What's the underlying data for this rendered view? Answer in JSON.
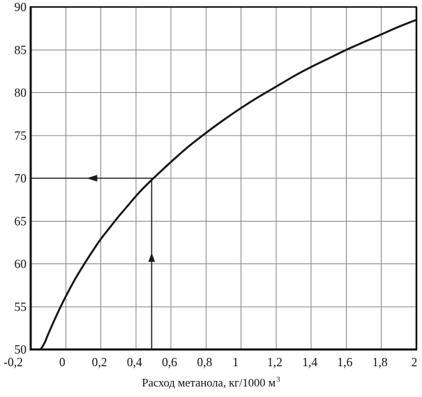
{
  "figure": {
    "background": "#ffffff",
    "curve_color": "#151515",
    "grid_color": "#7d7d7d",
    "axis_color": "#0d0d0d",
    "arrow_color": "#1a1a1a",
    "text_color": "#111111"
  },
  "chart_data": {
    "type": "line",
    "title": "",
    "xlabel": "Расход метанола, кг/1000 м",
    "xlabel_sup": "3",
    "ylabel": "",
    "xlim": [
      -0.2,
      2
    ],
    "ylim": [
      50,
      90
    ],
    "grid": true,
    "legend": "none",
    "x_ticks": [
      {
        "v": -0.2,
        "label": "-0,2",
        "dx": -25
      },
      {
        "v": 0,
        "label": "0",
        "dx": -5
      },
      {
        "v": 0.2,
        "label": "0,2",
        "dx": -2
      },
      {
        "v": 0.4,
        "label": "0,4",
        "dx": -2
      },
      {
        "v": 0.6,
        "label": "0,6",
        "dx": -2
      },
      {
        "v": 0.8,
        "label": "0,8",
        "dx": -2
      },
      {
        "v": 1,
        "label": "1",
        "dx": -8
      },
      {
        "v": 1.2,
        "label": "1,2",
        "dx": -2
      },
      {
        "v": 1.4,
        "label": "1,4",
        "dx": -2
      },
      {
        "v": 1.6,
        "label": "1,6",
        "dx": -2
      },
      {
        "v": 1.8,
        "label": "1,8",
        "dx": -2
      },
      {
        "v": 2,
        "label": "2",
        "dx": -3
      }
    ],
    "y_ticks": [
      {
        "v": 50,
        "label": "50"
      },
      {
        "v": 55,
        "label": "55"
      },
      {
        "v": 60,
        "label": "60"
      },
      {
        "v": 65,
        "label": "65"
      },
      {
        "v": 70,
        "label": "70"
      },
      {
        "v": 75,
        "label": "75"
      },
      {
        "v": 80,
        "label": "80"
      },
      {
        "v": 85,
        "label": "85"
      },
      {
        "v": 90,
        "label": "90"
      }
    ],
    "series": [
      {
        "name": "main-curve",
        "points": [
          [
            -0.144,
            50.0
          ],
          [
            -0.12,
            50.8
          ],
          [
            -0.1,
            51.8
          ],
          [
            -0.05,
            54.1
          ],
          [
            0,
            56.2
          ],
          [
            0.05,
            58.1
          ],
          [
            0.1,
            59.8
          ],
          [
            0.15,
            61.4
          ],
          [
            0.2,
            62.9
          ],
          [
            0.25,
            64.2
          ],
          [
            0.3,
            65.5
          ],
          [
            0.35,
            66.7
          ],
          [
            0.4,
            67.9
          ],
          [
            0.45,
            69.0
          ],
          [
            0.5,
            70.0
          ],
          [
            0.6,
            71.9
          ],
          [
            0.7,
            73.7
          ],
          [
            0.8,
            75.3
          ],
          [
            0.9,
            76.8
          ],
          [
            1.0,
            78.2
          ],
          [
            1.1,
            79.5
          ],
          [
            1.2,
            80.7
          ],
          [
            1.3,
            81.9
          ],
          [
            1.4,
            83.0
          ],
          [
            1.5,
            84.0
          ],
          [
            1.6,
            85.0
          ],
          [
            1.7,
            85.9
          ],
          [
            1.8,
            86.8
          ],
          [
            1.9,
            87.7
          ],
          [
            2.0,
            88.5
          ]
        ]
      }
    ],
    "annotations": [
      {
        "name": "readout-arrow-left",
        "type": "arrow",
        "line_from": [
          0.5,
          70
        ],
        "line_to": [
          -0.2,
          70
        ],
        "arrow_tip": [
          0.12,
          70
        ],
        "arrow_dir": "left"
      },
      {
        "name": "readout-arrow-up",
        "type": "arrow",
        "line_from": [
          0.49,
          50
        ],
        "line_to": [
          0.49,
          70
        ],
        "arrow_tip": [
          0.49,
          61.3
        ],
        "arrow_dir": "up"
      }
    ],
    "readout": {
      "x": 0.5,
      "y": 70
    }
  }
}
